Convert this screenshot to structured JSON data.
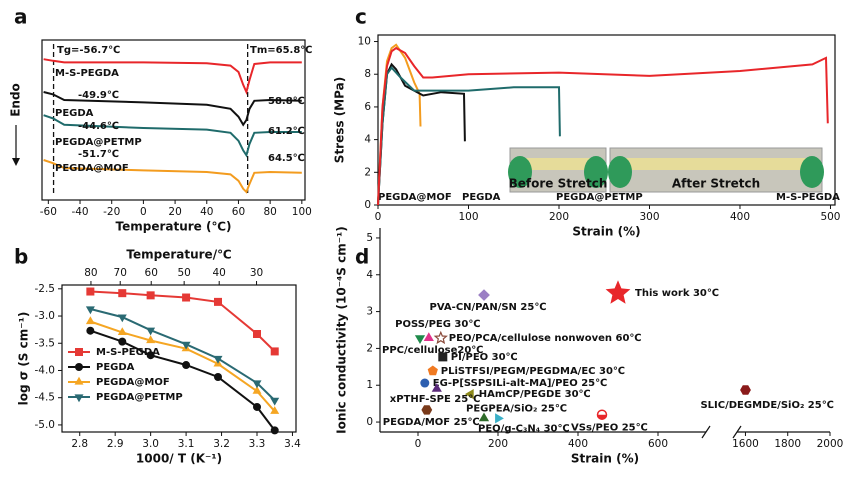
{
  "chart_data": [
    {
      "panel": "a",
      "type": "line",
      "xlabel": "Temperature (℃)",
      "ylabel": "Endo",
      "xlim": [
        -64,
        102
      ],
      "xticks": [
        -60,
        -40,
        -20,
        0,
        20,
        40,
        60,
        80,
        100
      ],
      "ylim": [
        0,
        100
      ],
      "x": [
        -63,
        -57,
        -50,
        0,
        40,
        55,
        60,
        63,
        65,
        67,
        70,
        80,
        100
      ],
      "series": [
        {
          "name": "M-S-PEGDA",
          "color": "#e8262a",
          "values": [
            88,
            87,
            86,
            86,
            85.5,
            84,
            80,
            72,
            67.5,
            75,
            85,
            86,
            86
          ]
        },
        {
          "name": "PEGDA",
          "color": "#111111",
          "values": [
            67.5,
            66,
            62.5,
            61,
            59.5,
            57,
            52,
            47,
            50,
            57,
            62,
            62.5,
            62
          ]
        },
        {
          "name": "PEGDA@PETMP",
          "color": "#1f6b6b",
          "values": [
            53,
            51,
            47,
            45,
            44,
            42,
            37,
            31,
            28,
            35,
            42,
            42.5,
            42.5
          ]
        },
        {
          "name": "PEGDA@MOF",
          "color": "#f39c1f",
          "values": [
            25,
            23,
            20,
            18.5,
            17.5,
            16,
            12,
            7,
            5,
            10,
            17,
            17.5,
            17
          ]
        }
      ],
      "dashed_lines": [
        -56.7,
        65.8
      ],
      "annotations": [
        "Tg=-56.7℃",
        "Tm=65.8℃",
        "-49.9℃",
        "58.8℃",
        "-44.6℃",
        "61.2℃",
        "-51.7℃",
        "64.5℃"
      ]
    },
    {
      "panel": "b",
      "type": "line",
      "xlabel": "1000/ T (K⁻¹)",
      "ylabel": "log σ (S cm⁻¹)",
      "x2label": "Temperature/℃",
      "xlim": [
        2.75,
        3.41
      ],
      "xticks": [
        2.8,
        2.9,
        {
          "value": 3,
          "label": "3.0"
        },
        3.1,
        3.2,
        3.3,
        3.4
      ],
      "ylim": [
        -5.13,
        -2.43
      ],
      "yticks": [
        {
          "value": -5,
          "label": "-5.0"
        },
        -4.5,
        {
          "value": -4,
          "label": "-4.0"
        },
        -3.5,
        {
          "value": -3,
          "label": "-3.0"
        },
        -2.5
      ],
      "x2ticks": [
        80,
        70,
        60,
        50,
        40,
        30
      ],
      "legend": "lower left",
      "x": [
        2.83,
        2.92,
        3.0,
        3.1,
        3.19,
        3.3,
        3.35
      ],
      "series": [
        {
          "name": "M-S-PEGDA",
          "color": "#e53935",
          "marker": "square",
          "values": [
            -2.55,
            -2.58,
            -2.62,
            -2.66,
            -2.74,
            -3.33,
            -3.65
          ]
        },
        {
          "name": "PEGDA",
          "color": "#111111",
          "marker": "circle",
          "values": [
            -3.27,
            -3.47,
            -3.72,
            -3.9,
            -4.12,
            -4.67,
            -5.1
          ]
        },
        {
          "name": "PEGDA@MOF",
          "color": "#f5a623",
          "marker": "triangle",
          "values": [
            -3.1,
            -3.3,
            -3.45,
            -3.6,
            -3.88,
            -4.38,
            -4.75
          ]
        },
        {
          "name": "PEGDA@PETMP",
          "color": "#2a6a73",
          "marker": "triangle-down",
          "values": [
            -2.87,
            -3.02,
            -3.26,
            -3.52,
            -3.78,
            -4.23,
            -4.55
          ]
        }
      ]
    },
    {
      "panel": "c",
      "type": "line",
      "xlabel": "Strain (%)",
      "ylabel": "Stress (MPa)",
      "xlim": [
        0,
        505
      ],
      "xticks": [
        0,
        100,
        200,
        300,
        400,
        500
      ],
      "ylim": [
        0,
        10.4
      ],
      "yticks": [
        0,
        2,
        4,
        6,
        8,
        10
      ],
      "series": [
        {
          "name": "PEGDA@MOF",
          "color": "#f39c1f",
          "x": [
            0,
            5,
            10,
            15,
            20,
            30,
            40,
            46,
            47
          ],
          "values": [
            0,
            6,
            8.8,
            9.6,
            9.8,
            9,
            7.5,
            6.8,
            4.8
          ]
        },
        {
          "name": "PEGDA",
          "color": "#111111",
          "x": [
            0,
            5,
            10,
            15,
            20,
            30,
            50,
            70,
            95,
            96
          ],
          "values": [
            0,
            5,
            8,
            8.6,
            8.3,
            7.3,
            6.7,
            6.9,
            6.8,
            3.9
          ]
        },
        {
          "name": "PEGDA@PETMP",
          "color": "#1f6b6b",
          "x": [
            0,
            5,
            10,
            15,
            25,
            40,
            100,
            150,
            200,
            201
          ],
          "values": [
            0,
            5,
            8,
            8.4,
            7.8,
            7.0,
            7.0,
            7.2,
            7.2,
            4.2
          ]
        },
        {
          "name": "M-S-PEGDA",
          "color": "#e8262a",
          "x": [
            0,
            5,
            10,
            15,
            20,
            30,
            40,
            50,
            60,
            100,
            200,
            300,
            400,
            480,
            495,
            497
          ],
          "values": [
            0,
            6,
            8.5,
            9.4,
            9.6,
            9.3,
            8.5,
            7.8,
            7.8,
            8.0,
            8.1,
            7.9,
            8.2,
            8.6,
            9.0,
            5.0
          ]
        }
      ],
      "photos": [
        "Before Stretch",
        "After Stretch"
      ]
    },
    {
      "panel": "d",
      "type": "scatter",
      "xlabel": "Strain (%)",
      "ylabel": "Ionic conductivity (10⁻⁴S cm⁻¹)",
      "xlim": [
        -95,
        2000
      ],
      "xbreak": [
        720,
        1560
      ],
      "xticks": [
        0,
        200,
        400,
        600,
        1600,
        1800,
        2000
      ],
      "ylim": [
        -0.27,
        5.27
      ],
      "yticks": [
        0,
        1,
        2,
        3,
        4,
        5
      ],
      "series": [
        {
          "name": "This work 30℃",
          "color": "#e8262a",
          "marker": "star",
          "x": [
            500
          ],
          "values": [
            3.5
          ]
        },
        {
          "name": "PVA-CN/PAN/SN 25℃",
          "color": "#9b7fc4",
          "marker": "diamond",
          "x": [
            165
          ],
          "values": [
            3.45
          ]
        },
        {
          "name": "POSS/PEG 30℃",
          "color": "#e0338a",
          "marker": "triangle",
          "x": [
            27
          ],
          "values": [
            2.28
          ]
        },
        {
          "name": "PEO/PCA/cellulose nonwoven 60℃",
          "color": "#8a4a3a",
          "marker": "star-open",
          "x": [
            57
          ],
          "values": [
            2.28
          ]
        },
        {
          "name": "PPC/cellulose20℃",
          "color": "#1e8a4a",
          "marker": "triangle-down",
          "x": [
            5
          ],
          "values": [
            2.28
          ]
        },
        {
          "name": "PI/PEO 30℃",
          "color": "#222222",
          "marker": "square",
          "x": [
            62
          ],
          "values": [
            1.77
          ]
        },
        {
          "name": "PLiSTFSI/PEGM/PEGDMA/EC 30℃",
          "color": "#f07a22",
          "marker": "pentagon",
          "x": [
            37
          ],
          "values": [
            1.39
          ]
        },
        {
          "name": "EG-P[SSPSILi-alt-MA]/PEO 25℃",
          "color": "#2d5fb0",
          "marker": "circle",
          "x": [
            17
          ],
          "values": [
            1.06
          ]
        },
        {
          "name": "HAmCP/PEGDE 30℃",
          "color": "#8d8a1a",
          "marker": "triangle-left",
          "x": [
            132
          ],
          "values": [
            0.76
          ]
        },
        {
          "name": "xPTHF-SPE 25℃",
          "color": "#5a2a7a",
          "marker": "triangle",
          "x": [
            47
          ],
          "values": [
            0.9
          ]
        },
        {
          "name": "PEGPEA/SiO₂ 25℃",
          "color": "#2f6b2a",
          "marker": "triangle",
          "x": [
            165
          ],
          "values": [
            0.1
          ]
        },
        {
          "name": "PEO/g-C₃N₄ 30℃",
          "color": "#3ab0c8",
          "marker": "triangle-right",
          "x": [
            200
          ],
          "values": [
            0.1
          ]
        },
        {
          "name": "PEGDA/MOF 25℃",
          "color": "#7a3a1a",
          "marker": "hexagon",
          "x": [
            22
          ],
          "values": [
            0.33
          ]
        },
        {
          "name": "VSs/PEO 25℃",
          "color": "#e8262a",
          "marker": "half-circle",
          "x": [
            460
          ],
          "values": [
            0.2
          ]
        },
        {
          "name": "SLIC/DEGMDE/SiO₂ 25℃",
          "color": "#8a1a1a",
          "marker": "hexagon",
          "x": [
            1600
          ],
          "values": [
            0.87
          ]
        }
      ]
    }
  ]
}
